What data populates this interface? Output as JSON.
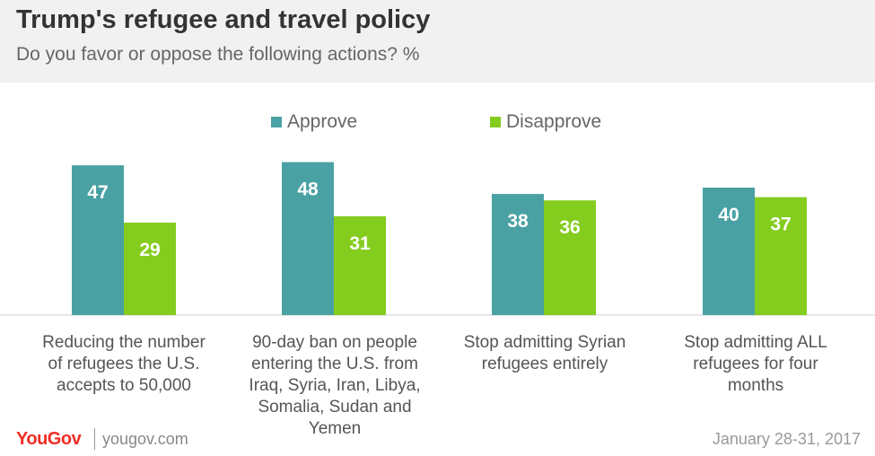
{
  "header": {
    "title": "Trump's refugee and travel policy",
    "subtitle": "Do you favor or oppose the following actions? %"
  },
  "colors": {
    "approve": "#4aa1a3",
    "disapprove": "#84cc1e",
    "header_bg": "#f1f1f1"
  },
  "chart_data": {
    "type": "bar",
    "categories": [
      "Reducing the number of refugees the U.S. accepts to 50,000",
      "90-day ban on people entering the U.S. from Iraq, Syria, Iran, Libya, Somalia, Sudan and Yemen",
      "Stop admitting Syrian refugees entirely",
      "Stop admitting ALL refugees for four months"
    ],
    "category_lines": [
      [
        "Reducing the number",
        "of refugees the U.S.",
        "accepts to 50,000"
      ],
      [
        "90-day ban on people",
        "entering the U.S. from",
        "Iraq, Syria, Iran, Libya,",
        "Somalia, Sudan and",
        "Yemen"
      ],
      [
        "Stop admitting Syrian",
        "refugees entirely"
      ],
      [
        "Stop admitting ALL",
        "refugees for four",
        "months"
      ]
    ],
    "series": [
      {
        "name": "Approve",
        "values": [
          47,
          48,
          38,
          40
        ]
      },
      {
        "name": "Disapprove",
        "values": [
          29,
          31,
          36,
          37
        ]
      }
    ],
    "ylim": [
      0,
      50
    ],
    "grid": false,
    "legend_position": "top"
  },
  "footer": {
    "logo": "YouGov",
    "site": "yougov.com",
    "date": "January 28-31, 2017"
  }
}
